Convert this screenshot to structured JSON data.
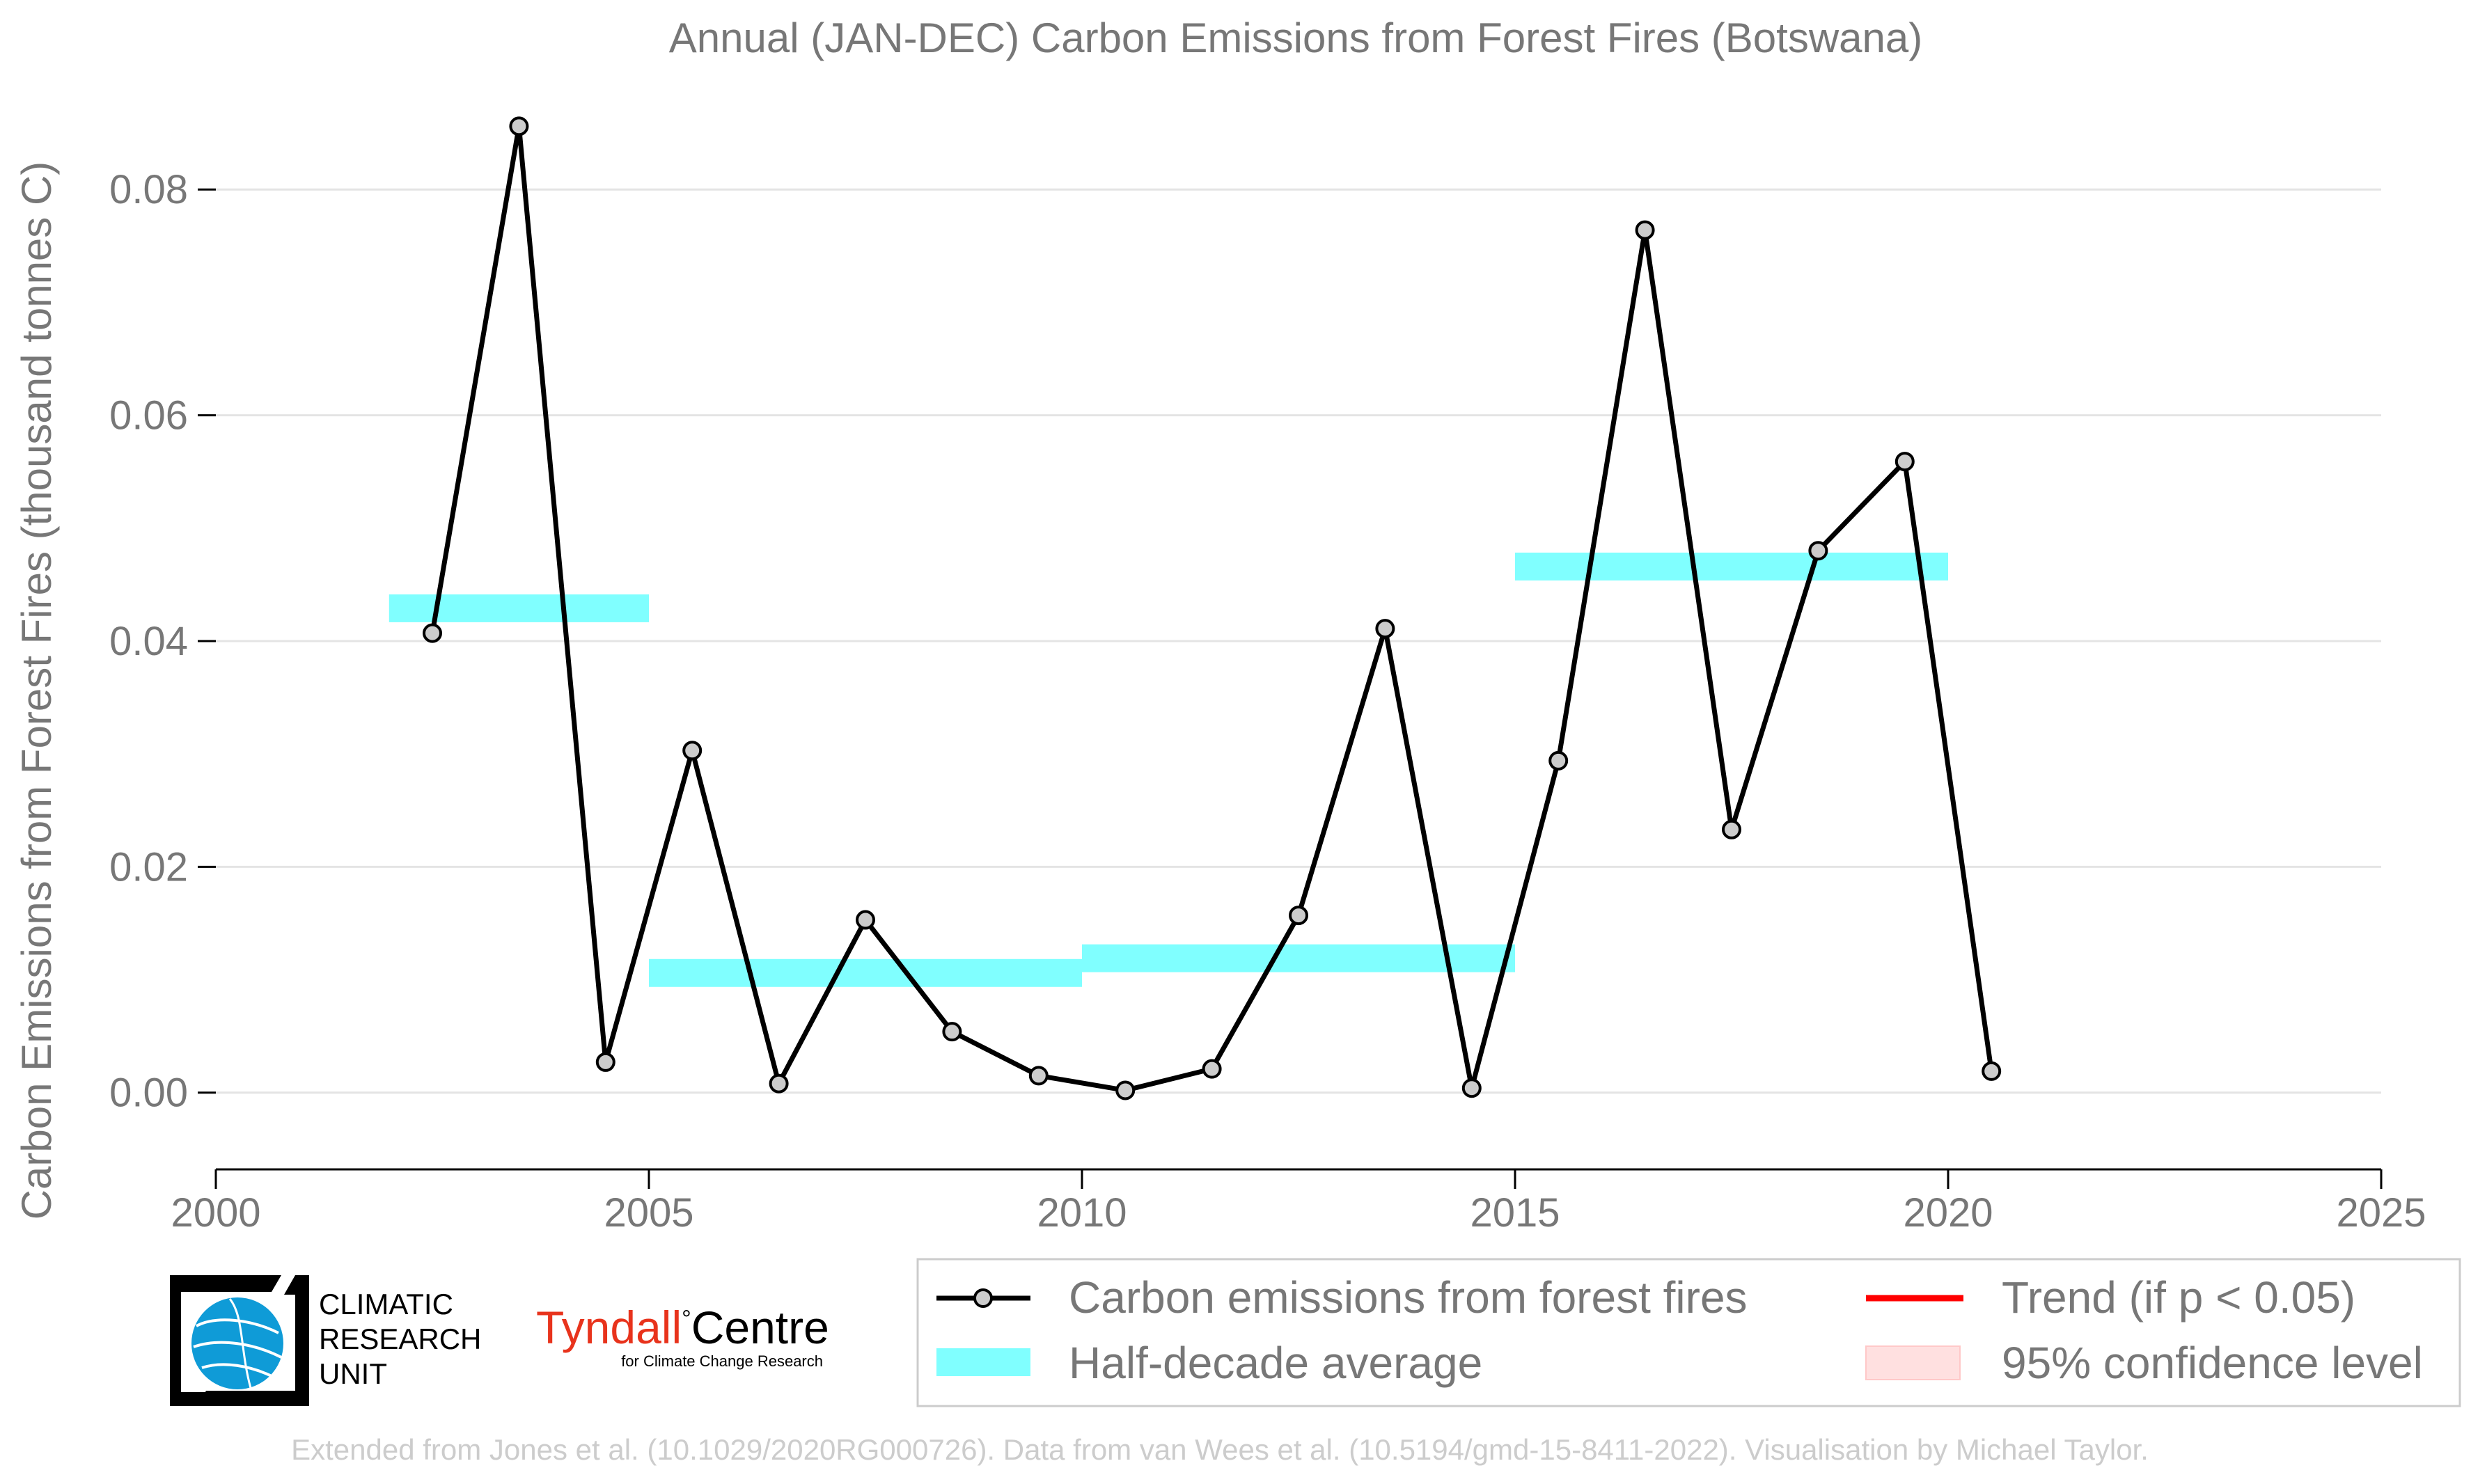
{
  "chart_data": {
    "type": "line",
    "title": "Annual (JAN-DEC) Carbon Emissions from Forest Fires (Botswana)",
    "ylabel": "Carbon Emissions from Forest Fires (thousand tonnes C)",
    "xlabel": "",
    "xlim": [
      2000,
      2025
    ],
    "ylim": [
      -0.0068,
      0.09
    ],
    "x_ticks": [
      "2000",
      "2005",
      "2010",
      "2015",
      "2020",
      "2025"
    ],
    "y_ticks": [
      "0.00",
      "0.02",
      "0.04",
      "0.06",
      "0.08"
    ],
    "y_tick_values": [
      0,
      0.02,
      0.04,
      0.06,
      0.08
    ],
    "grid": "horizontal",
    "series": [
      {
        "name": "Carbon emissions from forest fires",
        "color": "#000000",
        "x": [
          2002.5,
          2003.5,
          2004.5,
          2005.5,
          2006.5,
          2007.5,
          2008.5,
          2009.5,
          2010.5,
          2011.5,
          2012.5,
          2013.5,
          2014.5,
          2015.5,
          2016.5,
          2017.5,
          2018.5,
          2019.5,
          2020.5
        ],
        "y": [
          0.0407,
          0.0856,
          0.0027,
          0.0303,
          0.0008,
          0.0153,
          0.0054,
          0.0015,
          0.0002,
          0.0021,
          0.0157,
          0.0411,
          0.0004,
          0.0294,
          0.0764,
          0.0233,
          0.048,
          0.0559,
          0.0019
        ]
      }
    ],
    "half_decade_average": {
      "name": "Half-decade average",
      "color": "#80ffff",
      "segments": [
        {
          "x0": 2002,
          "x1": 2005,
          "y": 0.0429
        },
        {
          "x0": 2005,
          "x1": 2010,
          "y": 0.0106
        },
        {
          "x0": 2010,
          "x1": 2015,
          "y": 0.0119
        },
        {
          "x0": 2015,
          "x1": 2020,
          "y": 0.0466
        }
      ]
    },
    "legend": {
      "placement": "bottom-right",
      "entries": [
        {
          "label": "Carbon emissions from forest fires",
          "kind": "line-marker",
          "color": "#000000"
        },
        {
          "label": "Trend (if p < 0.05)",
          "kind": "line",
          "color": "#ff0000"
        },
        {
          "label": "Half-decade average",
          "kind": "band",
          "color": "#80ffff"
        },
        {
          "label": "95% confidence level",
          "kind": "patch",
          "color": "#ffe0e0"
        }
      ]
    }
  },
  "logos": {
    "cru_lines": [
      "CLIMATIC",
      "RESEARCH",
      "UNIT"
    ],
    "tyndall_name": "Tyndall",
    "tyndall_degree": "°",
    "tyndall_centre": "Centre",
    "tyndall_sub": "for Climate Change Research"
  },
  "footer": "Extended from Jones et al. (10.1029/2020RG000726). Data from van Wees et al. (10.5194/gmd-15-8411-2022). Visualisation by Michael Taylor."
}
